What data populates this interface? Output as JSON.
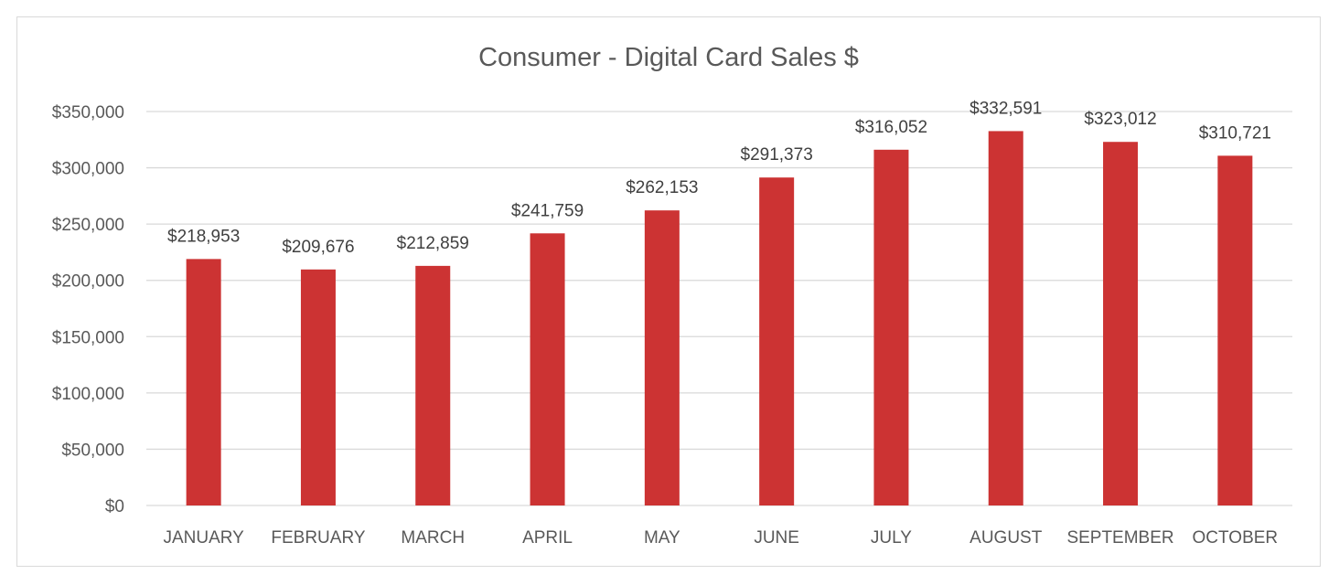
{
  "chart_data": {
    "type": "bar",
    "title": "Consumer - Digital Card Sales $",
    "xlabel": "",
    "ylabel": "",
    "categories": [
      "JANUARY",
      "FEBRUARY",
      "MARCH",
      "APRIL",
      "MAY",
      "JUNE",
      "JULY",
      "AUGUST",
      "SEPTEMBER",
      "OCTOBER"
    ],
    "values": [
      218953,
      209676,
      212859,
      241759,
      262153,
      291373,
      316052,
      332591,
      323012,
      310721
    ],
    "data_labels": [
      "$218,953",
      "$209,676",
      "$212,859",
      "$241,759",
      "$262,153",
      "$291,373",
      "$316,052",
      "$332,591",
      "$323,012",
      "$310,721"
    ],
    "ylim": [
      0,
      350000
    ],
    "y_ticks": [
      0,
      50000,
      100000,
      150000,
      200000,
      250000,
      300000,
      350000
    ],
    "y_tick_labels": [
      "$0",
      "$50,000",
      "$100,000",
      "$150,000",
      "$200,000",
      "$250,000",
      "$300,000",
      "$350,000"
    ],
    "grid": true,
    "legend": "none",
    "bar_color": "#cc3333",
    "gridline_color": "#d9d9d9",
    "text_color": "#595959"
  }
}
